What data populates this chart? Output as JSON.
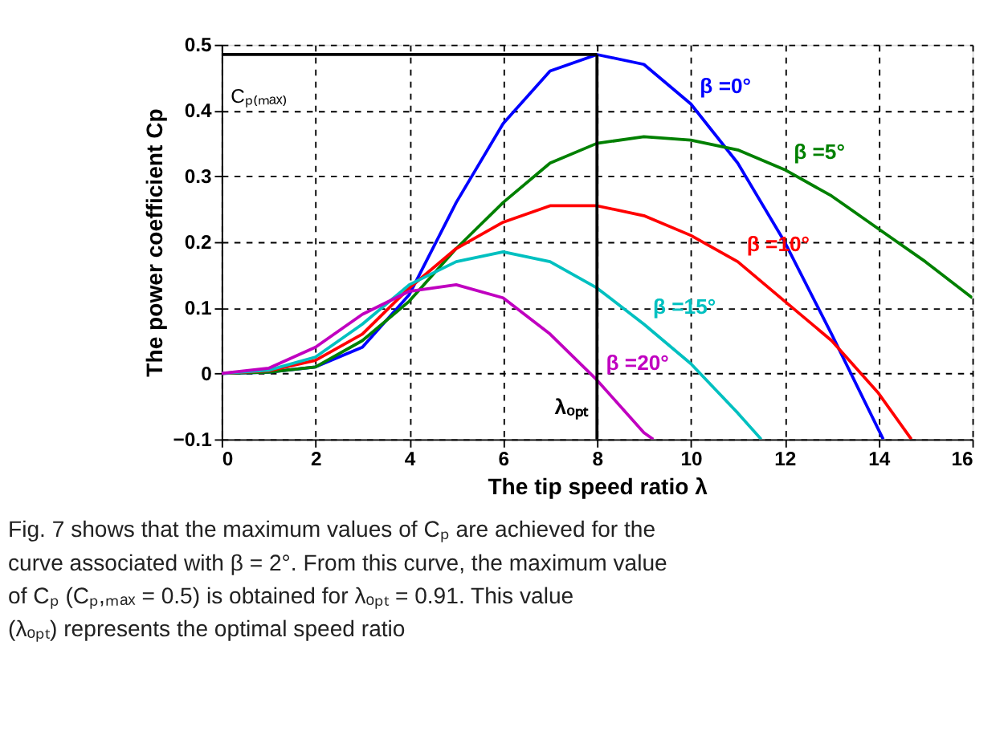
{
  "chart_data": {
    "type": "line",
    "xlabel": "The tip speed ratio λ",
    "ylabel": "The power coefficient Cp",
    "x": [
      0,
      1,
      2,
      3,
      4,
      5,
      6,
      7,
      8,
      9,
      10,
      11,
      12,
      13,
      14,
      15,
      16
    ],
    "series": [
      {
        "name": "β =0°",
        "color": "#0000ff",
        "x": [
          0,
          1,
          2,
          3,
          4,
          5,
          6,
          7,
          8,
          9,
          10,
          11,
          12,
          13,
          14.1
        ],
        "values": [
          0,
          0.002,
          0.01,
          0.04,
          0.12,
          0.26,
          0.38,
          0.46,
          0.485,
          0.47,
          0.41,
          0.32,
          0.2,
          0.06,
          -0.1
        ]
      },
      {
        "name": "β =5°",
        "color": "#008000",
        "values": [
          0,
          0.002,
          0.01,
          0.05,
          0.11,
          0.19,
          0.26,
          0.32,
          0.35,
          0.36,
          0.355,
          0.34,
          0.31,
          0.27,
          0.22,
          0.17,
          0.115
        ]
      },
      {
        "name": "β =10°",
        "color": "#ff0000",
        "x": [
          0,
          1,
          2,
          3,
          4,
          5,
          6,
          7,
          8,
          9,
          10,
          11,
          12,
          13,
          14,
          14.7
        ],
        "values": [
          0,
          0.004,
          0.02,
          0.06,
          0.13,
          0.19,
          0.23,
          0.255,
          0.255,
          0.24,
          0.21,
          0.17,
          0.11,
          0.05,
          -0.03,
          -0.1
        ]
      },
      {
        "name": "β =15°",
        "color": "#00c0c0",
        "x": [
          0,
          1,
          2,
          3,
          4,
          5,
          6,
          7,
          8,
          9,
          10,
          11,
          11.5
        ],
        "values": [
          0,
          0.005,
          0.025,
          0.075,
          0.135,
          0.17,
          0.185,
          0.17,
          0.13,
          0.075,
          0.015,
          -0.06,
          -0.1
        ]
      },
      {
        "name": "β =20°",
        "color": "#c000c0",
        "x": [
          0,
          1,
          2,
          3,
          4,
          5,
          6,
          7,
          8,
          9,
          9.2
        ],
        "values": [
          0,
          0.008,
          0.04,
          0.09,
          0.125,
          0.135,
          0.115,
          0.06,
          -0.01,
          -0.09,
          -0.1
        ]
      }
    ],
    "xlim": [
      0,
      16
    ],
    "xticks": [
      0,
      2,
      4,
      6,
      8,
      10,
      12,
      14,
      16
    ],
    "ylim": [
      -0.1,
      0.5
    ],
    "yticks": [
      -0.1,
      0,
      0.1,
      0.2,
      0.3,
      0.4,
      0.5
    ],
    "grid": true,
    "legend": false,
    "marker": "none",
    "line_style": "solid",
    "ref_lines": [
      {
        "axis": "y",
        "value": 0.485,
        "label": "Cₚ₍ₘₐₓ₎",
        "color": "#000000"
      },
      {
        "axis": "x",
        "value": 8,
        "label": "λₒₚₜ",
        "color": "#000000"
      }
    ],
    "annotations": [
      "Fig. 7 shows that the maximum values of Cₚ are achieved for the curve associated with β = 2°. From this curve, the maximum value of Cₚ (Cₚ,ₘₐₓ = 0.5) is obtained for λₒₚₜ = 0.91. This value (λₒₚₜ) represents the optimal speed ratio"
    ]
  }
}
